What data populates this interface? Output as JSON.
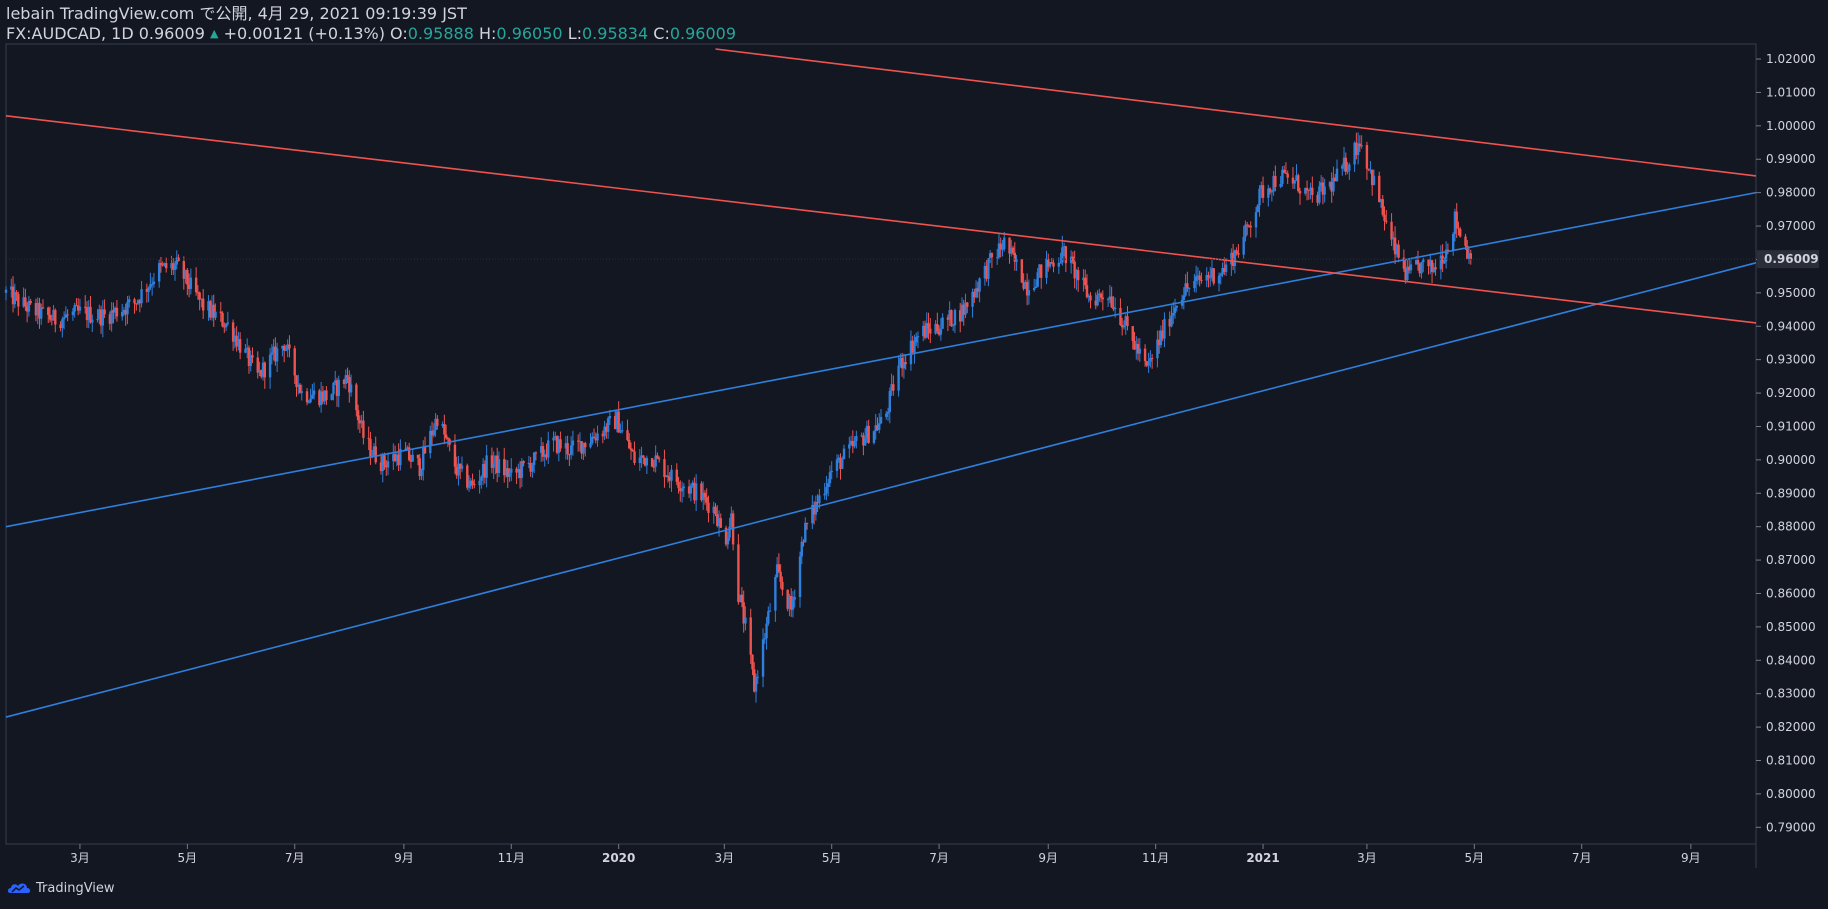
{
  "header": {
    "line1": "lebain TradingView.com で公開, 4月 29, 2021 09:19:39 JST",
    "symbol": "FX:AUDCAD, 1D",
    "last": "0.96009",
    "change_arrow": "▲",
    "change": "+0.00121 (+0.13%)",
    "o_label": "O:",
    "o_value": "0.95888",
    "h_label": "H:",
    "h_value": "0.96050",
    "l_label": "L:",
    "l_value": "0.95834",
    "c_label": "C:",
    "c_value": "0.96009"
  },
  "footer": {
    "brand": "TradingView"
  },
  "colors": {
    "background": "#131722",
    "up": "#2f7fdc",
    "down": "#ef5350",
    "blue_line": "#2f7fdc",
    "red_line": "#ef5350",
    "grid_border": "#363c4e",
    "price_label_bg": "#2a2e39"
  },
  "chart_data": {
    "type": "candlestick",
    "timeframe": "1D",
    "y_axis": {
      "ylim": [
        0.785,
        1.0245
      ],
      "ticks": [
        "0.79000",
        "0.80000",
        "0.81000",
        "0.82000",
        "0.83000",
        "0.84000",
        "0.85000",
        "0.86000",
        "0.87000",
        "0.88000",
        "0.89000",
        "0.90000",
        "0.91000",
        "0.92000",
        "0.93000",
        "0.94000",
        "0.95000",
        "0.96000",
        "0.97000",
        "0.98000",
        "0.99000",
        "1.00000",
        "1.01000",
        "1.02000"
      ],
      "current_price_label": "0.96009"
    },
    "x_axis": {
      "range": [
        "2019-01-18",
        "2021-10-08"
      ],
      "ticks": [
        {
          "date": "2019-03-01",
          "label": "3月"
        },
        {
          "date": "2019-05-01",
          "label": "5月"
        },
        {
          "date": "2019-07-01",
          "label": "7月"
        },
        {
          "date": "2019-09-01",
          "label": "9月"
        },
        {
          "date": "2019-11-01",
          "label": "11月"
        },
        {
          "date": "2020-01-01",
          "label": "2020"
        },
        {
          "date": "2020-03-01",
          "label": "3月"
        },
        {
          "date": "2020-05-01",
          "label": "5月"
        },
        {
          "date": "2020-07-01",
          "label": "7月"
        },
        {
          "date": "2020-09-01",
          "label": "9月"
        },
        {
          "date": "2020-11-01",
          "label": "11月"
        },
        {
          "date": "2021-01-01",
          "label": "2021"
        },
        {
          "date": "2021-03-01",
          "label": "3月"
        },
        {
          "date": "2021-05-01",
          "label": "5月"
        },
        {
          "date": "2021-07-01",
          "label": "7月"
        },
        {
          "date": "2021-09-01",
          "label": "9月"
        }
      ]
    },
    "price_path": [
      [
        "2019-01-18",
        0.95
      ],
      [
        "2019-02-01",
        0.945
      ],
      [
        "2019-02-15",
        0.942
      ],
      [
        "2019-03-01",
        0.944
      ],
      [
        "2019-03-15",
        0.943
      ],
      [
        "2019-04-01",
        0.947
      ],
      [
        "2019-04-15",
        0.957
      ],
      [
        "2019-04-25",
        0.958
      ],
      [
        "2019-05-10",
        0.946
      ],
      [
        "2019-05-25",
        0.94
      ],
      [
        "2019-06-10",
        0.925
      ],
      [
        "2019-06-25",
        0.935
      ],
      [
        "2019-07-05",
        0.92
      ],
      [
        "2019-07-20",
        0.919
      ],
      [
        "2019-07-31",
        0.925
      ],
      [
        "2019-08-10",
        0.905
      ],
      [
        "2019-08-20",
        0.899
      ],
      [
        "2019-09-01",
        0.902
      ],
      [
        "2019-09-10",
        0.898
      ],
      [
        "2019-09-20",
        0.913
      ],
      [
        "2019-10-01",
        0.897
      ],
      [
        "2019-10-10",
        0.892
      ],
      [
        "2019-10-20",
        0.9
      ],
      [
        "2019-11-01",
        0.895
      ],
      [
        "2019-11-15",
        0.9
      ],
      [
        "2019-11-25",
        0.905
      ],
      [
        "2019-12-05",
        0.903
      ],
      [
        "2019-12-15",
        0.906
      ],
      [
        "2019-12-31",
        0.912
      ],
      [
        "2020-01-10",
        0.9
      ],
      [
        "2020-01-20",
        0.901
      ],
      [
        "2020-01-31",
        0.895
      ],
      [
        "2020-02-15",
        0.89
      ],
      [
        "2020-02-25",
        0.885
      ],
      [
        "2020-03-01",
        0.875
      ],
      [
        "2020-03-05",
        0.883
      ],
      [
        "2020-03-09",
        0.86
      ],
      [
        "2020-03-13",
        0.85
      ],
      [
        "2020-03-18",
        0.832
      ],
      [
        "2020-03-23",
        0.845
      ],
      [
        "2020-03-31",
        0.866
      ],
      [
        "2020-04-08",
        0.855
      ],
      [
        "2020-04-15",
        0.878
      ],
      [
        "2020-04-30",
        0.896
      ],
      [
        "2020-05-15",
        0.905
      ],
      [
        "2020-05-31",
        0.912
      ],
      [
        "2020-06-08",
        0.928
      ],
      [
        "2020-06-20",
        0.938
      ],
      [
        "2020-07-01",
        0.94
      ],
      [
        "2020-07-15",
        0.945
      ],
      [
        "2020-07-31",
        0.96
      ],
      [
        "2020-08-07",
        0.965
      ],
      [
        "2020-08-20",
        0.952
      ],
      [
        "2020-08-31",
        0.958
      ],
      [
        "2020-09-10",
        0.962
      ],
      [
        "2020-09-25",
        0.948
      ],
      [
        "2020-10-05",
        0.95
      ],
      [
        "2020-10-15",
        0.94
      ],
      [
        "2020-10-27",
        0.927
      ],
      [
        "2020-11-05",
        0.938
      ],
      [
        "2020-11-15",
        0.95
      ],
      [
        "2020-11-30",
        0.955
      ],
      [
        "2020-12-10",
        0.957
      ],
      [
        "2020-12-20",
        0.965
      ],
      [
        "2020-12-31",
        0.98
      ],
      [
        "2021-01-10",
        0.985
      ],
      [
        "2021-01-20",
        0.983
      ],
      [
        "2021-01-29",
        0.978
      ],
      [
        "2021-02-10",
        0.983
      ],
      [
        "2021-02-19",
        0.99
      ],
      [
        "2021-02-25",
        0.996
      ],
      [
        "2021-03-05",
        0.983
      ],
      [
        "2021-03-15",
        0.965
      ],
      [
        "2021-03-24",
        0.955
      ],
      [
        "2021-03-31",
        0.958
      ],
      [
        "2021-04-07",
        0.957
      ],
      [
        "2021-04-15",
        0.963
      ],
      [
        "2021-04-20",
        0.972
      ],
      [
        "2021-04-29",
        0.96
      ]
    ],
    "trendlines": [
      {
        "color": "blue",
        "from": [
          "2019-01-18",
          0.88
        ],
        "to": [
          "2021-10-08",
          0.98
        ]
      },
      {
        "color": "blue",
        "from": [
          "2019-01-18",
          0.823
        ],
        "to": [
          "2021-10-08",
          0.959
        ]
      },
      {
        "color": "red",
        "from": [
          "2019-01-18",
          1.003
        ],
        "to": [
          "2021-10-08",
          0.941
        ]
      },
      {
        "color": "red",
        "from": [
          "2020-02-25",
          1.023
        ],
        "to": [
          "2021-10-08",
          0.985
        ]
      }
    ]
  }
}
